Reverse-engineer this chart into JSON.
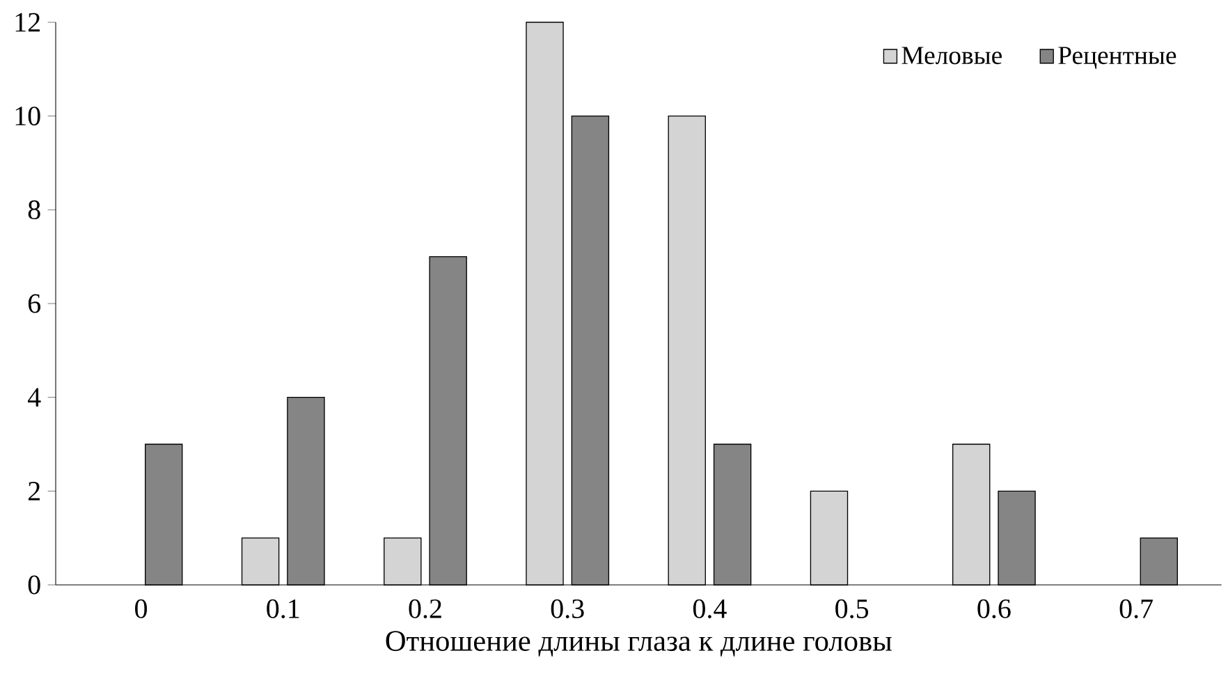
{
  "chart_data": {
    "type": "bar",
    "xlabel": "Отношение длины глаза к длине головы",
    "categories": [
      "0",
      "0.1",
      "0.2",
      "0.3",
      "0.4",
      "0.5",
      "0.6",
      "0.7"
    ],
    "series": [
      {
        "name": "Меловые",
        "color": "#d4d4d4",
        "values": [
          null,
          1,
          1,
          12,
          10,
          2,
          3,
          null
        ]
      },
      {
        "name": "Рецентные",
        "color": "#858585",
        "values": [
          3,
          4,
          7,
          10,
          3,
          null,
          2,
          1
        ]
      }
    ],
    "ylim": [
      0,
      12
    ],
    "yticks": [
      0,
      2,
      4,
      6,
      8,
      10,
      12
    ],
    "grid": false,
    "legend": "top right"
  }
}
